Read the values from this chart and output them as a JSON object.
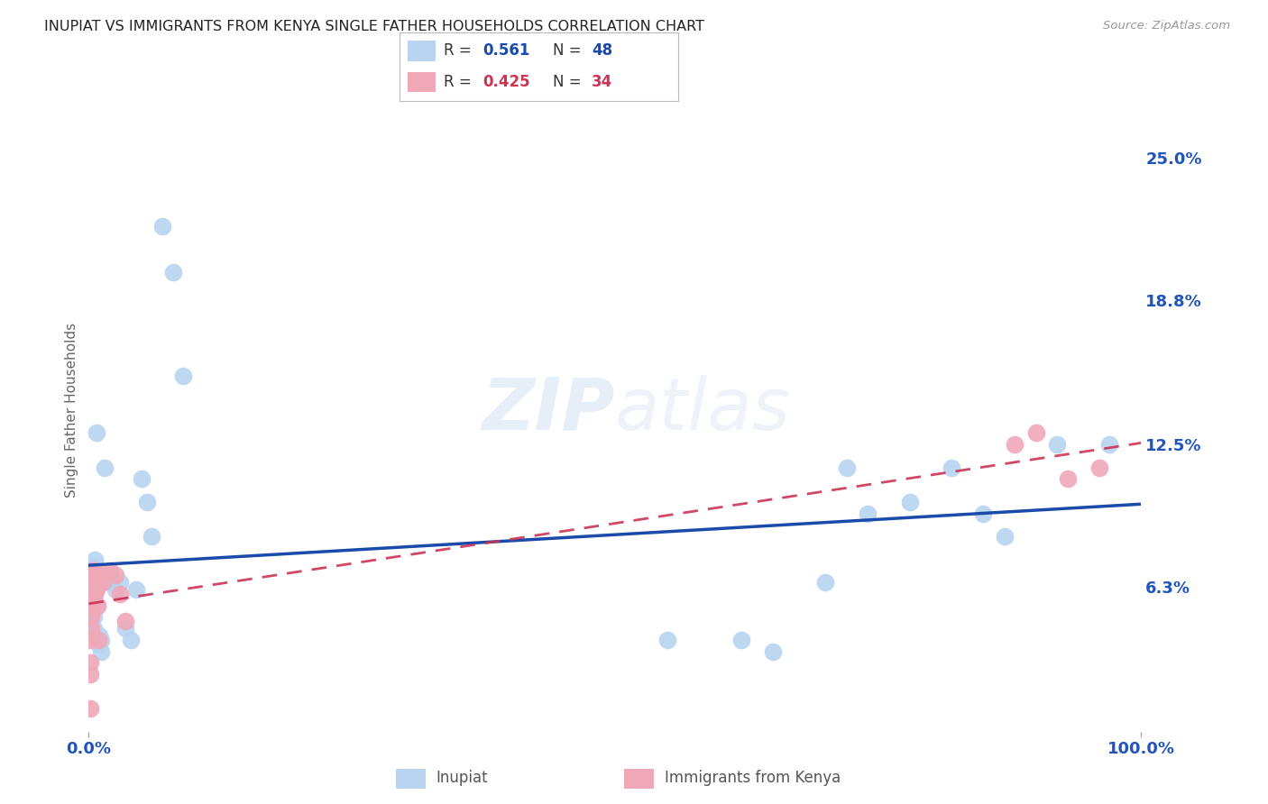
{
  "title": "INUPIAT VS IMMIGRANTS FROM KENYA SINGLE FATHER HOUSEHOLDS CORRELATION CHART",
  "source": "Source: ZipAtlas.com",
  "watermark_zip": "ZIP",
  "watermark_atlas": "atlas",
  "inupiat_color": "#b8d4f0",
  "kenya_color": "#f0a8b8",
  "inupiat_line_color": "#1a4aaa",
  "kenya_line_color": "#cc3355",
  "background_color": "#ffffff",
  "grid_color": "#cccccc",
  "tick_label_color": "#2255bb",
  "ylabel_label": "Single Father Households",
  "inupiat_x": [
    0.001,
    0.002,
    0.002,
    0.003,
    0.003,
    0.003,
    0.004,
    0.004,
    0.005,
    0.005,
    0.005,
    0.006,
    0.006,
    0.006,
    0.006,
    0.007,
    0.008,
    0.009,
    0.01,
    0.01,
    0.012,
    0.012,
    0.015,
    0.02,
    0.02,
    0.025,
    0.03,
    0.035,
    0.04,
    0.045,
    0.05,
    0.055,
    0.06,
    0.07,
    0.08,
    0.09,
    0.55,
    0.62,
    0.65,
    0.7,
    0.72,
    0.74,
    0.78,
    0.82,
    0.85,
    0.87,
    0.92,
    0.97
  ],
  "inupiat_y": [
    0.053,
    0.07,
    0.063,
    0.06,
    0.065,
    0.05,
    0.068,
    0.072,
    0.045,
    0.05,
    0.06,
    0.068,
    0.065,
    0.07,
    0.075,
    0.13,
    0.055,
    0.04,
    0.038,
    0.042,
    0.035,
    0.04,
    0.115,
    0.065,
    0.068,
    0.062,
    0.065,
    0.045,
    0.04,
    0.062,
    0.11,
    0.1,
    0.085,
    0.22,
    0.2,
    0.155,
    0.04,
    0.04,
    0.035,
    0.065,
    0.115,
    0.095,
    0.1,
    0.115,
    0.095,
    0.085,
    0.125,
    0.125
  ],
  "kenya_x": [
    0.001,
    0.001,
    0.001,
    0.001,
    0.002,
    0.002,
    0.002,
    0.002,
    0.003,
    0.003,
    0.003,
    0.003,
    0.003,
    0.004,
    0.004,
    0.004,
    0.005,
    0.005,
    0.005,
    0.006,
    0.006,
    0.007,
    0.008,
    0.009,
    0.01,
    0.013,
    0.02,
    0.025,
    0.03,
    0.035,
    0.88,
    0.9,
    0.93,
    0.96
  ],
  "kenya_y": [
    0.025,
    0.03,
    0.04,
    0.01,
    0.045,
    0.05,
    0.055,
    0.06,
    0.06,
    0.062,
    0.065,
    0.07,
    0.055,
    0.065,
    0.07,
    0.06,
    0.065,
    0.068,
    0.07,
    0.06,
    0.065,
    0.062,
    0.055,
    0.04,
    0.068,
    0.065,
    0.07,
    0.068,
    0.06,
    0.048,
    0.125,
    0.13,
    0.11,
    0.115
  ],
  "xlim": [
    0.0,
    1.0
  ],
  "ylim": [
    0.0,
    0.28
  ],
  "ytick_positions": [
    0.063,
    0.125,
    0.188,
    0.25
  ],
  "ytick_labels": [
    "6.3%",
    "12.5%",
    "18.8%",
    "25.0%"
  ],
  "xtick_positions": [
    0.0,
    1.0
  ],
  "xtick_labels": [
    "0.0%",
    "100.0%"
  ],
  "legend_inupiat_r": "0.561",
  "legend_inupiat_n": "48",
  "legend_kenya_r": "0.425",
  "legend_kenya_n": "34"
}
